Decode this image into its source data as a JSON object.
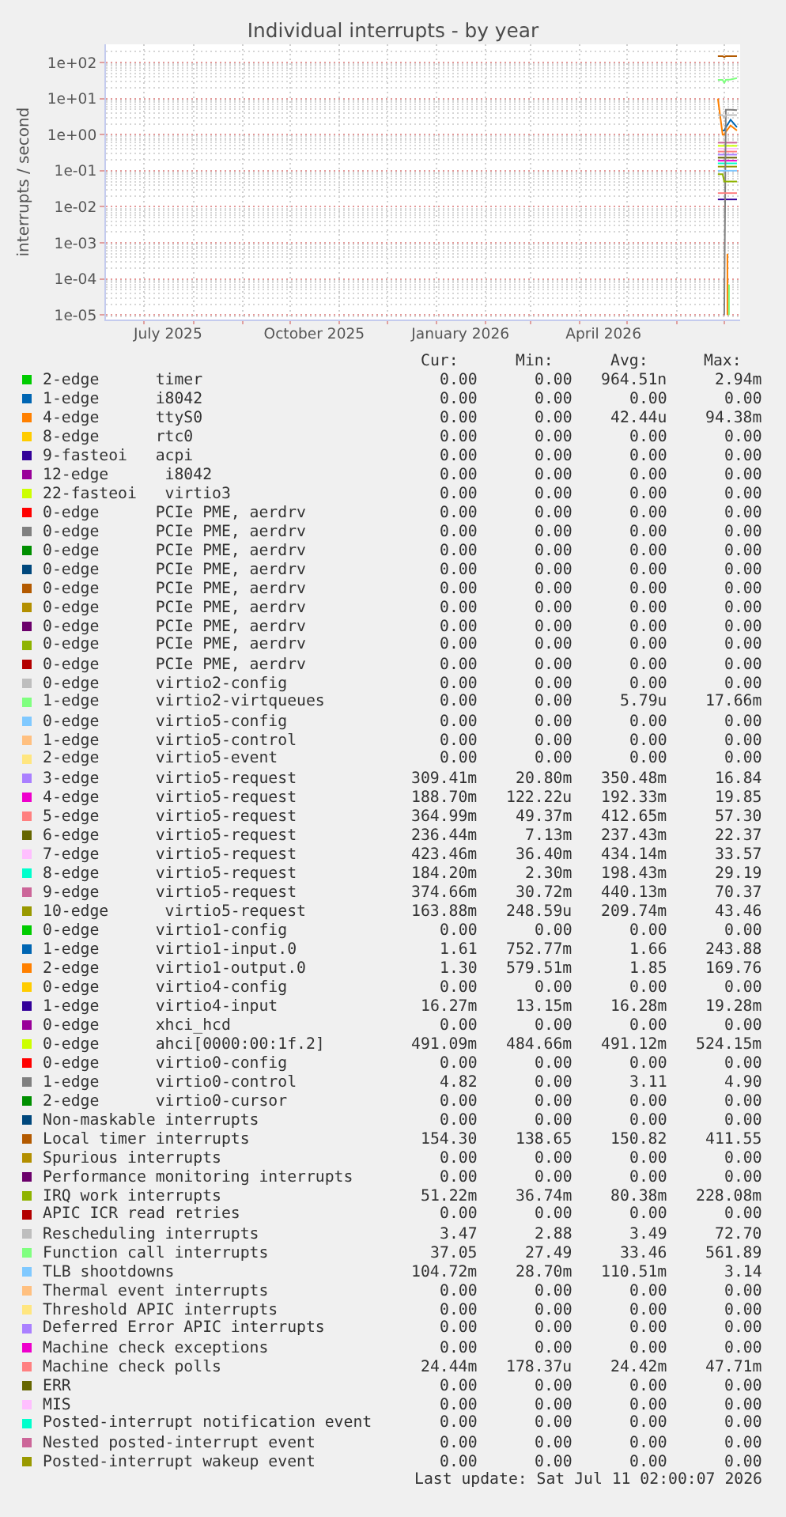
{
  "chart_data": {
    "type": "line",
    "title": "Individual interrupts - by year",
    "ylabel": "interrupts / second",
    "x": [
      "2026-06-27",
      "2026-06-30",
      "2026-07-01",
      "2026-07-02",
      "2026-07-05",
      "2026-07-09"
    ],
    "xlim": [
      "2025-06-07",
      "2026-07-11"
    ],
    "xticks": [
      {
        "value": "2025-07-16",
        "label": "July 2025"
      },
      {
        "value": "2025-10-16",
        "label": "October 2025"
      },
      {
        "value": "2026-01-16",
        "label": "January 2026"
      },
      {
        "value": "2026-04-16",
        "label": "April 2026"
      }
    ],
    "ylim": [
      7.5e-06,
      320
    ],
    "log": true,
    "yticks": [
      {
        "value": 1e-05,
        "label": "1e-05"
      },
      {
        "value": 0.0001,
        "label": "1e-04"
      },
      {
        "value": 0.001,
        "label": "1e-03"
      },
      {
        "value": 0.01,
        "label": "1e-02"
      },
      {
        "value": 0.1,
        "label": "1e-01"
      },
      {
        "value": 1,
        "label": "1e+00"
      },
      {
        "value": 10,
        "label": "1e+01"
      },
      {
        "value": 100,
        "label": "1e+02"
      }
    ],
    "grid": true,
    "legend": "bottom",
    "series": [
      {
        "name": "2-edge      timer",
        "color": "#00cc00",
        "values": [
          null,
          null,
          null,
          null,
          null,
          null
        ]
      },
      {
        "name": "1-edge      i8042",
        "color": "#0066b3",
        "values": [
          null,
          null,
          null,
          null,
          null,
          null
        ]
      },
      {
        "name": "4-edge      ttyS0",
        "color": "#ff8000",
        "x": [
          "2026-07-03",
          "2026-07-03"
        ],
        "values": [
          1e-05,
          0.0005
        ]
      },
      {
        "name": "8-edge      rtc0",
        "color": "#ffcc00",
        "values": [
          null,
          null,
          null,
          null,
          null,
          null
        ]
      },
      {
        "name": "9-fasteoi   acpi",
        "color": "#330099",
        "values": [
          null,
          null,
          null,
          null,
          null,
          null
        ]
      },
      {
        "name": "12-edge      i8042",
        "color": "#990099",
        "values": [
          null,
          null,
          null,
          null,
          null,
          null
        ]
      },
      {
        "name": "22-fasteoi   virtio3",
        "color": "#ccff00",
        "values": [
          null,
          null,
          null,
          null,
          null,
          null
        ]
      },
      {
        "name": "0-edge      PCIe PME, aerdrv",
        "color": "#ff0000",
        "values": [
          null,
          null,
          null,
          null,
          null,
          null
        ]
      },
      {
        "name": "0-edge      PCIe PME, aerdrv",
        "color": "#808080",
        "values": [
          null,
          null,
          null,
          null,
          null,
          null
        ]
      },
      {
        "name": "0-edge      PCIe PME, aerdrv",
        "color": "#008f00",
        "values": [
          null,
          null,
          null,
          null,
          null,
          null
        ]
      },
      {
        "name": "0-edge      PCIe PME, aerdrv",
        "color": "#00487d",
        "values": [
          null,
          null,
          null,
          null,
          null,
          null
        ]
      },
      {
        "name": "0-edge      PCIe PME, aerdrv",
        "color": "#b35a00",
        "values": [
          null,
          null,
          null,
          null,
          null,
          null
        ]
      },
      {
        "name": "0-edge      PCIe PME, aerdrv",
        "color": "#b38f00",
        "values": [
          null,
          null,
          null,
          null,
          null,
          null
        ]
      },
      {
        "name": "0-edge      PCIe PME, aerdrv",
        "color": "#6b006b",
        "values": [
          null,
          null,
          null,
          null,
          null,
          null
        ]
      },
      {
        "name": "0-edge      PCIe PME, aerdrv",
        "color": "#8fb300",
        "values": [
          null,
          null,
          null,
          null,
          null,
          null
        ]
      },
      {
        "name": "0-edge      PCIe PME, aerdrv",
        "color": "#b30000",
        "values": [
          null,
          null,
          null,
          null,
          null,
          null
        ]
      },
      {
        "name": "0-edge      virtio2-config",
        "color": "#bebebe",
        "values": [
          null,
          null,
          null,
          null,
          null,
          null
        ]
      },
      {
        "name": "1-edge      virtio2-virtqueues",
        "color": "#80ff80",
        "x": [
          "2026-07-04",
          "2026-07-04"
        ],
        "values": [
          1e-05,
          7e-05
        ]
      },
      {
        "name": "0-edge      virtio5-config",
        "color": "#80c9ff",
        "values": [
          null,
          null,
          null,
          null,
          null,
          null
        ]
      },
      {
        "name": "1-edge      virtio5-control",
        "color": "#ffc080",
        "values": [
          null,
          null,
          null,
          null,
          null,
          null
        ]
      },
      {
        "name": "2-edge      virtio5-event",
        "color": "#ffe680",
        "values": [
          null,
          null,
          null,
          null,
          null,
          null
        ]
      },
      {
        "name": "3-edge      virtio5-request",
        "color": "#aa80ff",
        "values": [
          0.28,
          0.28,
          0.28,
          0.28,
          0.28,
          0.28
        ]
      },
      {
        "name": "4-edge      virtio5-request",
        "color": "#ee00cc",
        "values": [
          0.19,
          0.19,
          0.19,
          0.19,
          0.19,
          0.19
        ]
      },
      {
        "name": "5-edge      virtio5-request",
        "color": "#ff8080",
        "values": [
          0.34,
          0.34,
          0.34,
          0.34,
          0.34,
          0.34
        ]
      },
      {
        "name": "6-edge      virtio5-request",
        "color": "#666600",
        "values": [
          0.23,
          0.23,
          0.23,
          0.23,
          0.23,
          0.23
        ]
      },
      {
        "name": "7-edge      virtio5-request",
        "color": "#ffbfff",
        "values": [
          0.41,
          0.41,
          0.41,
          0.41,
          0.41,
          0.41
        ]
      },
      {
        "name": "8-edge      virtio5-request",
        "color": "#00ffcc",
        "values": [
          0.16,
          0.16,
          0.16,
          0.16,
          0.16,
          0.16
        ]
      },
      {
        "name": "9-edge      virtio5-request",
        "color": "#cc6699",
        "values": [
          0.6,
          0.6,
          0.6,
          0.6,
          0.6,
          0.6
        ]
      },
      {
        "name": "10-edge      virtio5-request",
        "color": "#999900",
        "values": [
          0.13,
          0.13,
          0.13,
          0.13,
          0.13,
          0.13
        ]
      },
      {
        "name": "0-edge      virtio1-config",
        "color": "#00cc00",
        "values": [
          null,
          null,
          null,
          null,
          null,
          null
        ]
      },
      {
        "name": "1-edge      virtio1-input.0",
        "color": "#0066b3",
        "values": [
          null,
          1.3,
          1.3,
          1.6,
          2.6,
          1.6
        ]
      },
      {
        "name": "2-edge      virtio1-output.0",
        "color": "#ff8000",
        "values": [
          10,
          1.0,
          1.0,
          1.2,
          1.8,
          1.3
        ]
      },
      {
        "name": "0-edge      virtio4-config",
        "color": "#ffcc00",
        "values": [
          null,
          null,
          null,
          null,
          null,
          null
        ]
      },
      {
        "name": "1-edge      virtio4-input",
        "color": "#330099",
        "values": [
          0.016,
          0.016,
          0.016,
          0.016,
          0.016,
          0.016
        ]
      },
      {
        "name": "0-edge      xhci_hcd",
        "color": "#990099",
        "values": [
          null,
          null,
          null,
          null,
          null,
          null
        ]
      },
      {
        "name": "0-edge      ahci[0000:00:1f.2]",
        "color": "#ccff00",
        "values": [
          0.49,
          0.49,
          0.49,
          0.49,
          0.49,
          0.49
        ]
      },
      {
        "name": "0-edge      virtio0-config",
        "color": "#ff0000",
        "values": [
          null,
          null,
          null,
          null,
          null,
          null
        ]
      },
      {
        "name": "1-edge      virtio0-control",
        "color": "#808080",
        "values": [
          null,
          null,
          1e-05,
          4.9,
          4.9,
          4.8
        ]
      },
      {
        "name": "2-edge      virtio0-cursor",
        "color": "#008f00",
        "values": [
          null,
          null,
          null,
          null,
          null,
          null
        ]
      },
      {
        "name": "Non-maskable interrupts",
        "color": "#00487d",
        "values": [
          null,
          null,
          null,
          null,
          null,
          null
        ]
      },
      {
        "name": "Local timer interrupts",
        "color": "#b35a00",
        "values": [
          150,
          150,
          140,
          150,
          150,
          150
        ]
      },
      {
        "name": "Spurious interrupts",
        "color": "#b38f00",
        "values": [
          null,
          null,
          null,
          null,
          null,
          null
        ]
      },
      {
        "name": "Performance monitoring interrupts",
        "color": "#6b006b",
        "values": [
          null,
          null,
          null,
          null,
          null,
          null
        ]
      },
      {
        "name": "IRQ work interrupts",
        "color": "#8fb300",
        "values": [
          0.08,
          0.08,
          0.05,
          0.05,
          0.05,
          0.05
        ]
      },
      {
        "name": "APIC ICR read retries",
        "color": "#b30000",
        "values": [
          null,
          null,
          null,
          null,
          null,
          null
        ]
      },
      {
        "name": "Rescheduling interrupts",
        "color": "#bebebe",
        "values": [
          3.5,
          3.5,
          2.9,
          3.5,
          3.5,
          3.5
        ]
      },
      {
        "name": "Function call interrupts",
        "color": "#80ff80",
        "values": [
          33,
          33,
          27,
          33,
          34,
          37
        ]
      },
      {
        "name": "TLB shootdowns",
        "color": "#80c9ff",
        "values": [
          0.1,
          0.1,
          0.1,
          0.1,
          0.1,
          0.1
        ]
      },
      {
        "name": "Thermal event interrupts",
        "color": "#ffc080",
        "values": [
          null,
          null,
          null,
          null,
          null,
          null
        ]
      },
      {
        "name": "Threshold APIC interrupts",
        "color": "#ffe680",
        "values": [
          null,
          null,
          null,
          null,
          null,
          null
        ]
      },
      {
        "name": "Deferred Error APIC interrupts",
        "color": "#aa80ff",
        "values": [
          null,
          null,
          null,
          null,
          null,
          null
        ]
      },
      {
        "name": "Machine check exceptions",
        "color": "#ee00cc",
        "values": [
          null,
          null,
          null,
          null,
          null,
          null
        ]
      },
      {
        "name": "Machine check polls",
        "color": "#ff8081",
        "values": [
          0.024,
          0.024,
          0.024,
          0.024,
          0.024,
          0.024
        ]
      },
      {
        "name": "ERR",
        "color": "#666600",
        "values": [
          null,
          null,
          null,
          null,
          null,
          null
        ]
      },
      {
        "name": "MIS",
        "color": "#ffbfff",
        "values": [
          null,
          null,
          null,
          null,
          null,
          null
        ]
      },
      {
        "name": "Posted-interrupt notification event",
        "color": "#00ffcc",
        "values": [
          null,
          null,
          null,
          null,
          null,
          null
        ]
      },
      {
        "name": "Nested posted-interrupt event",
        "color": "#cc6699",
        "values": [
          null,
          null,
          null,
          null,
          null,
          null
        ]
      },
      {
        "name": "Posted-interrupt wakeup event",
        "color": "#999900",
        "values": [
          null,
          null,
          null,
          null,
          null,
          null
        ]
      }
    ],
    "annotations": [
      "Cur:",
      "Min:",
      "Avg:",
      "Max:",
      "0.00",
      "0.00",
      "964.51n",
      "2.94m",
      "0.00",
      "0.00",
      "0.00",
      "0.00",
      "0.00",
      "0.00",
      "42.44u",
      "94.38m",
      "0.00",
      "0.00",
      "0.00",
      "0.00",
      "0.00",
      "0.00",
      "0.00",
      "0.00",
      "0.00",
      "0.00",
      "0.00",
      "0.00",
      "0.00",
      "0.00",
      "0.00",
      "0.00",
      "0.00",
      "0.00",
      "0.00",
      "0.00",
      "0.00",
      "0.00",
      "0.00",
      "0.00",
      "0.00",
      "0.00",
      "0.00",
      "0.00",
      "0.00",
      "0.00",
      "0.00",
      "0.00",
      "0.00",
      "0.00",
      "0.00",
      "0.00",
      "0.00",
      "0.00",
      "0.00",
      "0.00",
      "0.00",
      "0.00",
      "0.00",
      "0.00",
      "0.00",
      "0.00",
      "0.00",
      "0.00",
      "0.00",
      "0.00",
      "0.00",
      "0.00",
      "0.00",
      "0.00",
      "0.00",
      "0.00",
      "0.00",
      "0.00",
      "5.79u",
      "17.66m",
      "0.00",
      "0.00",
      "0.00",
      "0.00",
      "0.00",
      "0.00",
      "0.00",
      "0.00",
      "0.00",
      "0.00",
      "0.00",
      "0.00",
      "309.41m",
      "20.80m",
      "350.48m",
      "16.84",
      "188.70m",
      "122.22u",
      "192.33m",
      "19.85",
      "364.99m",
      "49.37m",
      "412.65m",
      "57.30",
      "236.44m",
      "7.13m",
      "237.43m",
      "22.37",
      "423.46m",
      "36.40m",
      "434.14m",
      "33.57",
      "184.20m",
      "2.30m",
      "198.43m",
      "29.19",
      "374.66m",
      "30.72m",
      "440.13m",
      "70.37",
      "163.88m",
      "248.59u",
      "209.74m",
      "43.46",
      "0.00",
      "0.00",
      "0.00",
      "0.00",
      "1.61",
      "752.77m",
      "1.66",
      "243.88",
      "1.30",
      "579.51m",
      "1.85",
      "169.76",
      "0.00",
      "0.00",
      "0.00",
      "0.00",
      "16.27m",
      "13.15m",
      "16.28m",
      "19.28m",
      "0.00",
      "0.00",
      "0.00",
      "0.00",
      "491.09m",
      "484.66m",
      "491.12m",
      "524.15m",
      "0.00",
      "0.00",
      "0.00",
      "0.00",
      "4.82",
      "0.00",
      "3.11",
      "4.90",
      "0.00",
      "0.00",
      "0.00",
      "0.00",
      "0.00",
      "0.00",
      "0.00",
      "0.00",
      "154.30",
      "138.65",
      "150.82",
      "411.55",
      "0.00",
      "0.00",
      "0.00",
      "0.00",
      "0.00",
      "0.00",
      "0.00",
      "0.00",
      "51.22m",
      "36.74m",
      "80.38m",
      "228.08m",
      "0.00",
      "0.00",
      "0.00",
      "0.00",
      "3.47",
      "2.88",
      "3.49",
      "72.70",
      "37.05",
      "27.49",
      "33.46",
      "561.89",
      "104.72m",
      "28.70m",
      "110.51m",
      "3.14",
      "0.00",
      "0.00",
      "0.00",
      "0.00",
      "0.00",
      "0.00",
      "0.00",
      "0.00",
      "0.00",
      "0.00",
      "0.00",
      "0.00",
      "0.00",
      "0.00",
      "0.00",
      "0.00",
      "24.44m",
      "178.37u",
      "24.42m",
      "47.71m",
      "0.00",
      "0.00",
      "0.00",
      "0.00",
      "0.00",
      "0.00",
      "0.00",
      "0.00",
      "0.00",
      "0.00",
      "0.00",
      "0.00",
      "0.00",
      "0.00",
      "0.00",
      "0.00",
      "0.00",
      "0.00",
      "0.00",
      "0.00",
      "Last update: Sat Jul 11 02:00:07 2026"
    ]
  }
}
